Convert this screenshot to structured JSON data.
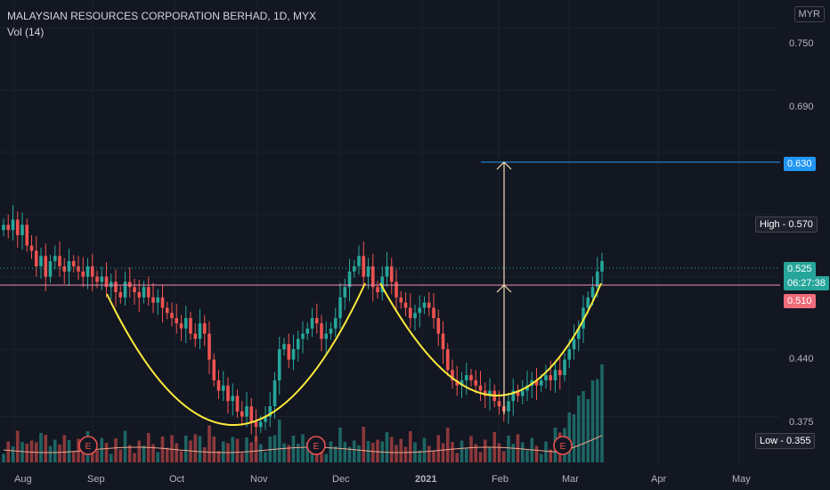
{
  "header": {
    "title": "MALAYSIAN RESOURCES CORPORATION BERHAD, 1D, MYX",
    "indicator": "Vol (14)",
    "currency": "MYR"
  },
  "price_tags": {
    "target": "0.630",
    "high": "High - 0.570",
    "last": "0.525",
    "countdown": "06:27:38",
    "support": "0.510",
    "low": "Low - 0.355"
  },
  "earnings_marker": "E",
  "colors": {
    "up": "#26a69a",
    "down": "#ef5350",
    "pattern": "#ffeb3b",
    "arrow": "#f5deb3",
    "target": "#2196f3",
    "support": "#f48fb1",
    "background": "#131722"
  },
  "chart_data": {
    "type": "candlestick",
    "title": "MALAYSIAN RESOURCES CORPORATION BERHAD, 1D, MYX",
    "y_ticks": [
      "0.750",
      "0.690",
      "0.440",
      "0.375"
    ],
    "x_ticks": [
      "Aug",
      "Sep",
      "Oct",
      "Nov",
      "Dec",
      "2021",
      "Feb",
      "Mar",
      "Apr",
      "May"
    ],
    "ylim": [
      0.33,
      0.77
    ],
    "last_price": 0.525,
    "high": 0.57,
    "low": 0.355,
    "target": 0.63,
    "support": 0.51,
    "earnings_dates": [
      "Sep",
      "Dec",
      "Mar"
    ],
    "close": [
      0.56,
      0.555,
      0.565,
      0.55,
      0.56,
      0.54,
      0.535,
      0.52,
      0.53,
      0.51,
      0.525,
      0.53,
      0.52,
      0.515,
      0.525,
      0.52,
      0.515,
      0.51,
      0.52,
      0.51,
      0.505,
      0.51,
      0.5,
      0.505,
      0.495,
      0.49,
      0.505,
      0.5,
      0.495,
      0.49,
      0.5,
      0.49,
      0.485,
      0.49,
      0.48,
      0.475,
      0.47,
      0.465,
      0.46,
      0.47,
      0.455,
      0.45,
      0.465,
      0.455,
      0.43,
      0.41,
      0.4,
      0.405,
      0.39,
      0.395,
      0.38,
      0.375,
      0.385,
      0.37,
      0.365,
      0.37,
      0.375,
      0.385,
      0.41,
      0.44,
      0.445,
      0.43,
      0.44,
      0.45,
      0.455,
      0.46,
      0.47,
      0.465,
      0.45,
      0.455,
      0.46,
      0.47,
      0.49,
      0.5,
      0.515,
      0.52,
      0.53,
      0.51,
      0.52,
      0.5,
      0.495,
      0.51,
      0.52,
      0.505,
      0.49,
      0.485,
      0.48,
      0.47,
      0.475,
      0.48,
      0.485,
      0.48,
      0.47,
      0.455,
      0.44,
      0.42,
      0.41,
      0.405,
      0.41,
      0.415,
      0.41,
      0.405,
      0.4,
      0.395,
      0.4,
      0.39,
      0.385,
      0.38,
      0.39,
      0.4,
      0.395,
      0.4,
      0.405,
      0.41,
      0.405,
      0.41,
      0.415,
      0.41,
      0.42,
      0.415,
      0.43,
      0.44,
      0.45,
      0.46,
      0.48,
      0.49,
      0.5,
      0.515,
      0.525
    ],
    "volume_note": "Vol (14)"
  }
}
